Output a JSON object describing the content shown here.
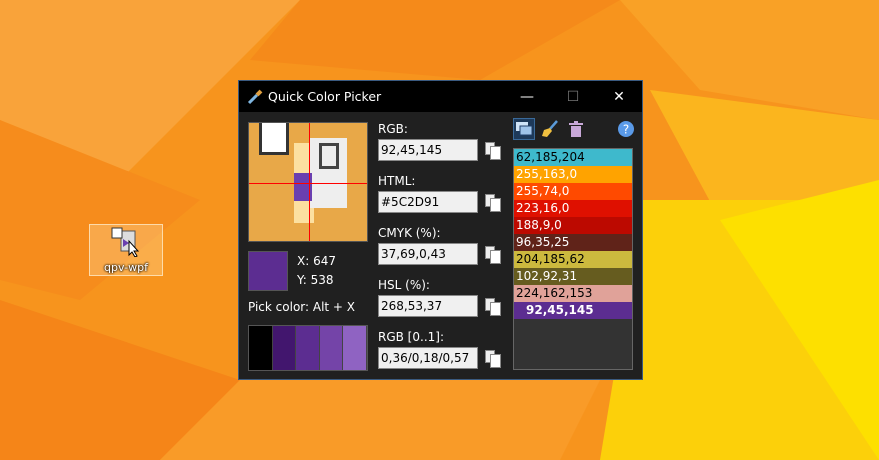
{
  "desktop": {
    "icon_label": "qpv-wpf"
  },
  "window": {
    "title": "Quick Color Picker",
    "minimize": "—",
    "maximize": "☐",
    "close": "✕"
  },
  "picker": {
    "x_label": "X: 647",
    "y_label": "Y: 538",
    "hint": "Pick color: Alt + X",
    "current_color": "#5C2D91",
    "shades": [
      "#000000",
      "#42166e",
      "#5c2d91",
      "#7444a8",
      "#8f63c2"
    ]
  },
  "fields": [
    {
      "label": "RGB:",
      "value": "92,45,145"
    },
    {
      "label": "HTML:",
      "value": "#5C2D91"
    },
    {
      "label": "CMYK (%):",
      "value": "37,69,0,43"
    },
    {
      "label": "HSL (%):",
      "value": "268,53,37"
    },
    {
      "label": "RGB [0..1]:",
      "value": "0,36/0,18/0,57"
    }
  ],
  "toolbar": {
    "icons": [
      "overlay-windows-icon",
      "broom-icon",
      "trash-icon",
      "help-icon"
    ]
  },
  "palette": [
    {
      "text": "62,185,204",
      "bg": "#3eb9cc",
      "fg": "#000"
    },
    {
      "text": "255,163,0",
      "bg": "#ffa300",
      "fg": "#fff"
    },
    {
      "text": "255,74,0",
      "bg": "#ff4a00",
      "fg": "#fff"
    },
    {
      "text": "223,16,0",
      "bg": "#df1000",
      "fg": "#fff"
    },
    {
      "text": "188,9,0",
      "bg": "#bc0900",
      "fg": "#fff"
    },
    {
      "text": "96,35,25",
      "bg": "#602319",
      "fg": "#fff"
    },
    {
      "text": "204,185,62",
      "bg": "#ccb93e",
      "fg": "#000"
    },
    {
      "text": "102,92,31",
      "bg": "#665c1f",
      "fg": "#fff"
    },
    {
      "text": "224,162,153",
      "bg": "#e0a299",
      "fg": "#000"
    },
    {
      "text": "92,45,145",
      "bg": "#5c2d91",
      "fg": "#fff",
      "selected": true
    }
  ]
}
